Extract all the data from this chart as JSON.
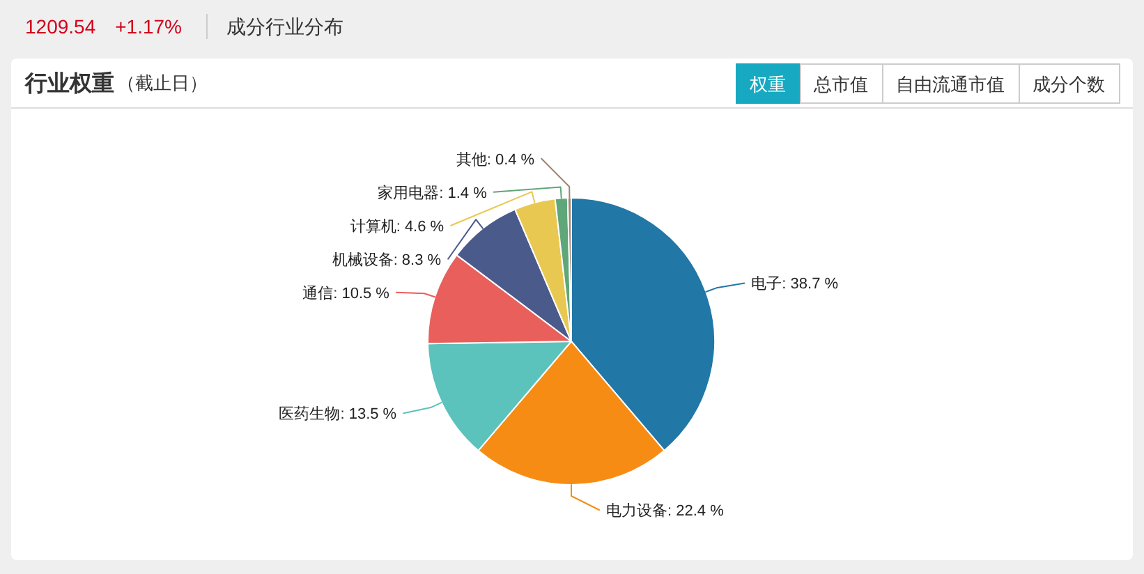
{
  "chart_data": {
    "type": "pie",
    "title": "行业权重",
    "subtitle": "（截止日）",
    "categories": [
      "电子",
      "电力设备",
      "医药生物",
      "通信",
      "机械设备",
      "计算机",
      "家用电器",
      "其他"
    ],
    "values": [
      38.7,
      22.4,
      13.5,
      10.5,
      8.3,
      4.6,
      1.4,
      0.4
    ],
    "value_labels": [
      "38.7 %",
      "22.4 %",
      "13.5 %",
      "10.5 %",
      "8.3 %",
      "4.6 %",
      "1.4 %",
      "0.4 %"
    ],
    "colors": [
      "#2177a6",
      "#f68c13",
      "#5bc2bc",
      "#e85f5c",
      "#495a8b",
      "#e8c851",
      "#5fa678",
      "#a1826e"
    ],
    "annotations": [
      "1209.54",
      "+1.17%",
      "成分行业分布",
      "权重",
      "总市值",
      "自由流通市值",
      "成分个数"
    ]
  }
}
